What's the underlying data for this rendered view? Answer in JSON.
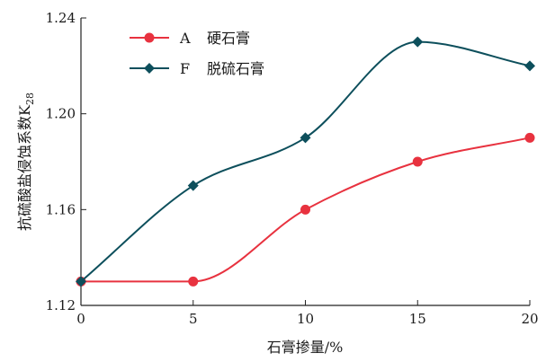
{
  "chart_data": {
    "type": "line",
    "x": [
      0,
      5,
      10,
      15,
      20
    ],
    "xlabel": "石膏掺量/%",
    "ylabel": "抗硫酸盐侵蚀系数K",
    "ylabel_subscript": "28",
    "xlim": [
      0,
      20
    ],
    "ylim": [
      1.12,
      1.24
    ],
    "xticks": [
      "0",
      "5",
      "10",
      "15",
      "20"
    ],
    "yticks": [
      "1.12",
      "1.16",
      "1.20",
      "1.24"
    ],
    "grid": false,
    "legend_position": "top-left",
    "series": [
      {
        "code": "A",
        "name": "硬石膏",
        "marker": "circle",
        "color": "#e8323f",
        "values": [
          1.13,
          1.13,
          1.16,
          1.18,
          1.19
        ]
      },
      {
        "code": "F",
        "name": "脱硫石膏",
        "marker": "diamond",
        "color": "#0d4f5c",
        "values": [
          1.13,
          1.17,
          1.19,
          1.23,
          1.22
        ]
      }
    ]
  }
}
